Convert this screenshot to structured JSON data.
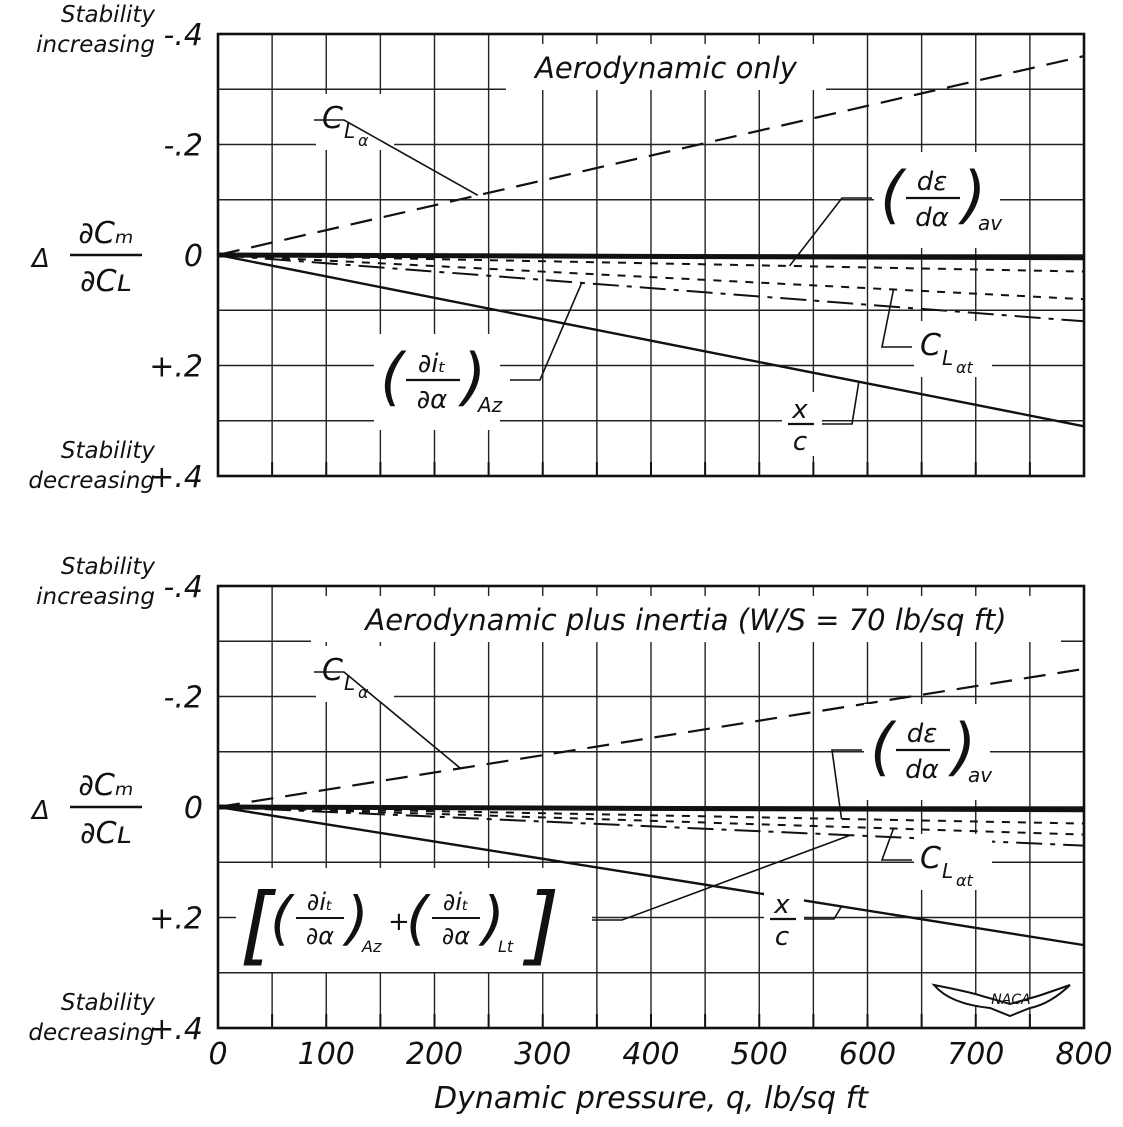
{
  "chart_data": [
    {
      "type": "line",
      "title": "Aerodynamic only",
      "xlabel": "Dynamic pressure, q, lb/sq ft",
      "ylabel": "Δ ∂Cm/∂CL",
      "xlim": [
        0,
        800
      ],
      "ylim": [
        -0.4,
        0.4
      ],
      "y_inverted": true,
      "x_ticks": [
        "0",
        "100",
        "200",
        "300",
        "400",
        "500",
        "600",
        "700",
        "800"
      ],
      "y_ticks": [
        "-.4",
        "-.2",
        "0",
        "+.2",
        "+.4"
      ],
      "y_top_note": [
        "Stability",
        "increasing"
      ],
      "y_bottom_note": [
        "Stability",
        "decreasing"
      ],
      "grid": true,
      "series": [
        {
          "name": "C_Lα",
          "style": "dashed-long",
          "x": [
            0,
            800
          ],
          "y": [
            0,
            -0.36
          ]
        },
        {
          "name": "(dε/dα)av",
          "style": "dashed-short",
          "x": [
            0,
            800
          ],
          "y": [
            0,
            0.03
          ]
        },
        {
          "name": "C_Lαt",
          "style": "dashed-short",
          "x": [
            0,
            800
          ],
          "y": [
            0,
            0.08
          ]
        },
        {
          "name": "(∂it/∂α)Az",
          "style": "dash-dot",
          "x": [
            0,
            800
          ],
          "y": [
            0,
            0.12
          ]
        },
        {
          "name": "x/c",
          "style": "solid",
          "x": [
            0,
            800
          ],
          "y": [
            0,
            0.31
          ]
        },
        {
          "name": "",
          "style": "solid-heavy",
          "x": [
            0,
            800
          ],
          "y": [
            0,
            0.005
          ]
        }
      ],
      "annotations": [
        {
          "series": "C_Lα",
          "label": "C_Lα"
        },
        {
          "series": "(dε/dα)av",
          "label": "(dε/dα)av"
        },
        {
          "series": "C_Lαt",
          "label": "C_Lαt"
        },
        {
          "series": "(∂it/∂α)Az",
          "label": "(∂it/∂α)Az"
        },
        {
          "series": "x/c",
          "label": "x/c"
        }
      ]
    },
    {
      "type": "line",
      "title": "Aerodynamic plus inertia (W/S = 70 lb/sq ft)",
      "xlabel": "Dynamic pressure, q, lb/sq ft",
      "ylabel": "Δ ∂Cm/∂CL",
      "xlim": [
        0,
        800
      ],
      "ylim": [
        -0.4,
        0.4
      ],
      "y_inverted": true,
      "x_ticks": [
        "0",
        "100",
        "200",
        "300",
        "400",
        "500",
        "600",
        "700",
        "800"
      ],
      "y_ticks": [
        "-.4",
        "-.2",
        "0",
        "+.2",
        "+.4"
      ],
      "y_top_note": [
        "Stability",
        "increasing"
      ],
      "y_bottom_note": [
        "Stability",
        "decreasing"
      ],
      "grid": true,
      "series": [
        {
          "name": "C_Lα",
          "style": "dashed-long",
          "x": [
            0,
            800
          ],
          "y": [
            0,
            -0.25
          ]
        },
        {
          "name": "(dε/dα)av",
          "style": "dashed-short",
          "x": [
            0,
            800
          ],
          "y": [
            0,
            0.03
          ]
        },
        {
          "name": "C_Lαt",
          "style": "dashed-short",
          "x": [
            0,
            800
          ],
          "y": [
            0,
            0.05
          ]
        },
        {
          "name": "[(∂it/∂α)Az + (∂it/∂α)Lt]",
          "style": "dash-dot",
          "x": [
            0,
            800
          ],
          "y": [
            0,
            0.07
          ]
        },
        {
          "name": "x/c",
          "style": "solid",
          "x": [
            0,
            800
          ],
          "y": [
            0,
            0.25
          ]
        },
        {
          "name": "",
          "style": "solid-heavy",
          "x": [
            0,
            800
          ],
          "y": [
            0,
            0.005
          ]
        }
      ],
      "annotations": [
        {
          "series": "C_Lα",
          "label": "C_Lα"
        },
        {
          "series": "(dε/dα)av",
          "label": "(dε/dα)av"
        },
        {
          "series": "C_Lαt",
          "label": "C_Lαt"
        },
        {
          "series": "[(∂it/∂α)Az + (∂it/∂α)Lt]",
          "label": "[(∂it/∂α)Az + (∂it/∂α)Lt]"
        },
        {
          "series": "x/c",
          "label": "x/c"
        }
      ]
    }
  ],
  "logo": "NACA",
  "icons": {
    "logo": "naca-wings-logo"
  }
}
